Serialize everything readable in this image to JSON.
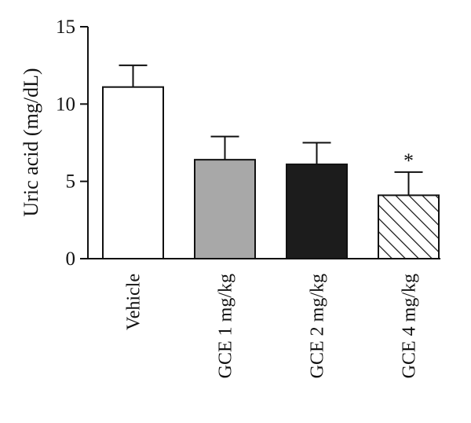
{
  "chart_data": {
    "type": "bar",
    "title": "",
    "xlabel": "",
    "ylabel": "Uric acid (mg/dL)",
    "ylim": [
      0,
      15
    ],
    "yticks": [
      0,
      5,
      10,
      15
    ],
    "categories": [
      "Vehicle",
      "GCE 1 mg/kg",
      "GCE 2 mg/kg",
      "GCE 4 mg/kg"
    ],
    "values": [
      11.1,
      6.4,
      6.1,
      4.1
    ],
    "error_upper": [
      1.4,
      1.5,
      1.4,
      1.5
    ],
    "bar_styles": [
      {
        "fill": "#ffffff",
        "pattern": "none"
      },
      {
        "fill": "#a8a8a8",
        "pattern": "none"
      },
      {
        "fill": "#1c1c1c",
        "pattern": "none"
      },
      {
        "fill": "#ffffff",
        "pattern": "diagonal-hatch"
      }
    ],
    "annotations": [
      "",
      "",
      "",
      "*"
    ],
    "grid": false,
    "legend": "none"
  }
}
